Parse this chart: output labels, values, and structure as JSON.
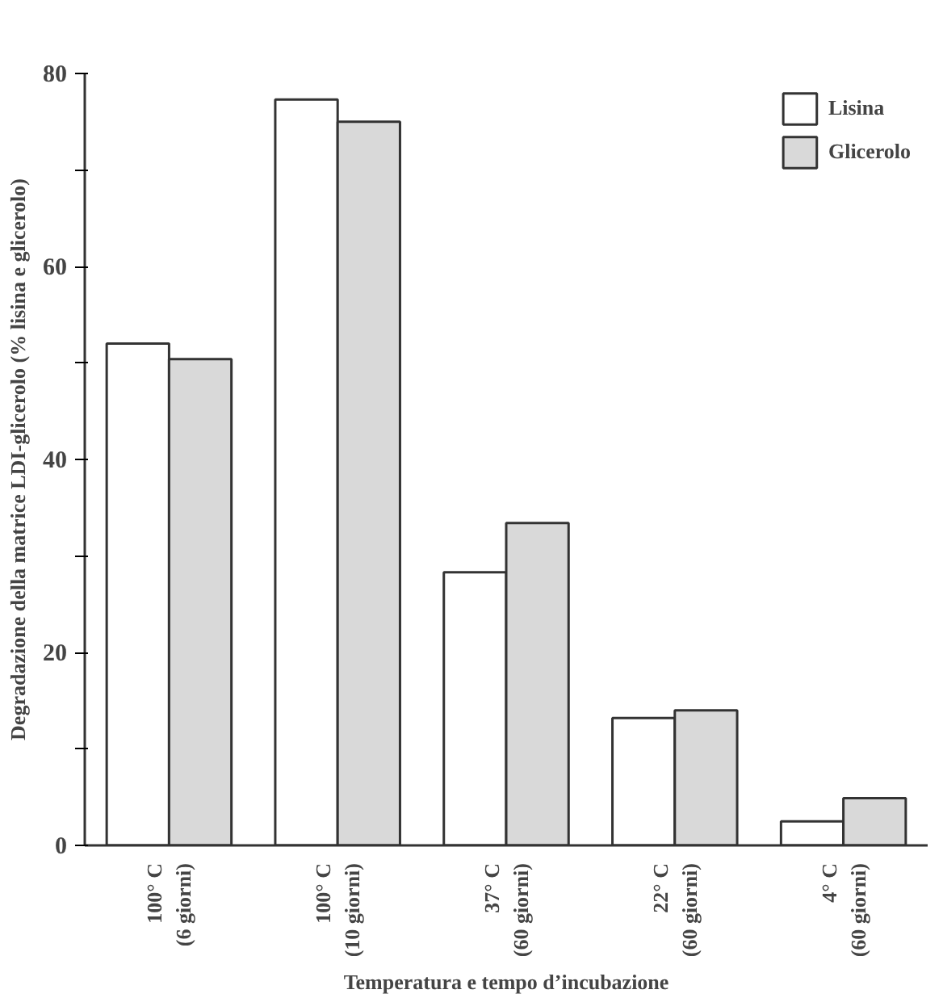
{
  "chart_data": {
    "type": "bar",
    "xlabel": "Temperatura e tempo d’incubazione",
    "ylabel": "Degradazione della matrice LDI-glicerolo (% lisina e glicerolo)",
    "categories": [
      "100° C\n(6 giorni)",
      "100° C\n(10 giorni)",
      "37° C\n(60 giorni)",
      "22° C\n(60 giorni)",
      "4° C\n(60 giorni)"
    ],
    "series": [
      {
        "name": "Lisina",
        "color": "#ffffff",
        "values": [
          52,
          77.3,
          28.3,
          13.2,
          2.5
        ]
      },
      {
        "name": "Glicerolo",
        "color": "#d9d9d9",
        "values": [
          50.4,
          75.0,
          33.4,
          14.0,
          4.9
        ]
      }
    ],
    "ylim": [
      0,
      80
    ],
    "yticks": [
      0,
      {
        "value": 10,
        "label": null
      },
      20,
      {
        "value": 30,
        "label": null
      },
      40,
      {
        "value": 50,
        "label": null
      },
      60,
      {
        "value": 70,
        "label": null
      },
      80
    ],
    "grid": false,
    "legend": "top right"
  }
}
